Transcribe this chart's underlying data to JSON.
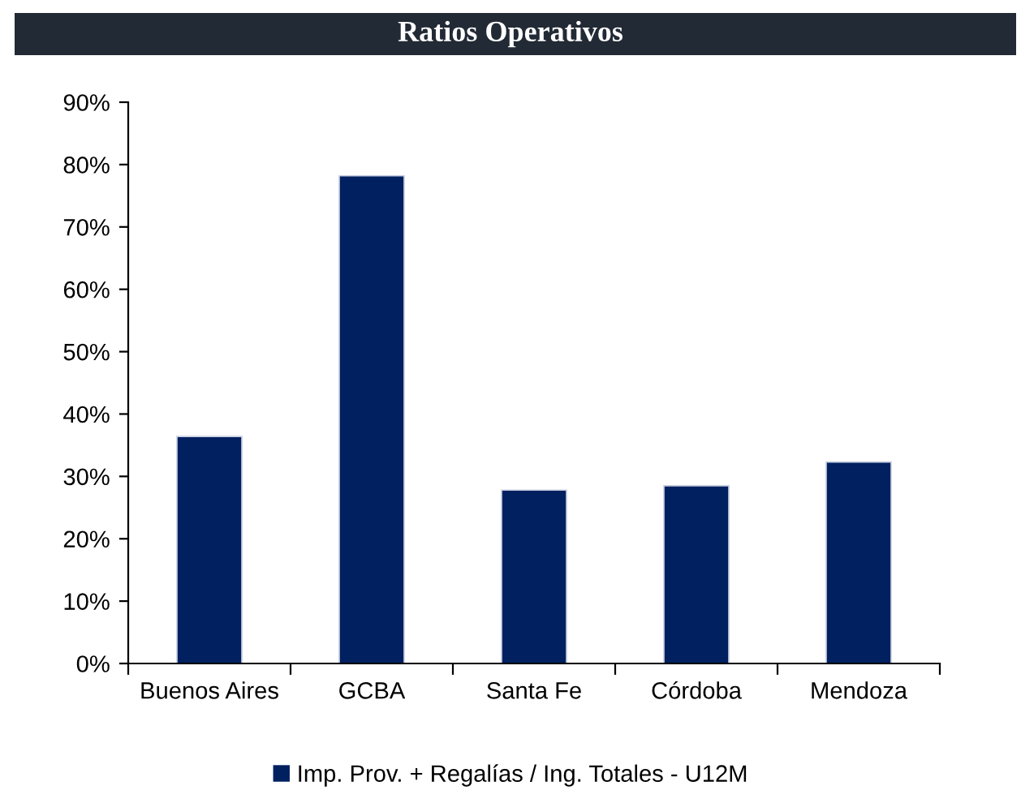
{
  "chart_data": {
    "type": "bar",
    "title": "Ratios Operativos",
    "categories": [
      "Buenos Aires",
      "GCBA",
      "Santa Fe",
      "Córdoba",
      "Mendoza"
    ],
    "series": [
      {
        "name": "Imp. Prov. + Regalías / Ing. Totales - U12M",
        "color": "#002060",
        "values": [
          36.4,
          78.2,
          27.8,
          28.5,
          32.3
        ]
      }
    ],
    "ylim": [
      0,
      90
    ],
    "yticks": [
      {
        "value": 0,
        "label": "0%"
      },
      {
        "value": 10,
        "label": "10%"
      },
      {
        "value": 20,
        "label": "20%"
      },
      {
        "value": 30,
        "label": "30%"
      },
      {
        "value": 40,
        "label": "40%"
      },
      {
        "value": 50,
        "label": "50%"
      },
      {
        "value": 60,
        "label": "60%"
      },
      {
        "value": 70,
        "label": "70%"
      },
      {
        "value": 80,
        "label": "80%"
      },
      {
        "value": 90,
        "label": "90%"
      }
    ],
    "grid": false,
    "legend": "bottom"
  }
}
